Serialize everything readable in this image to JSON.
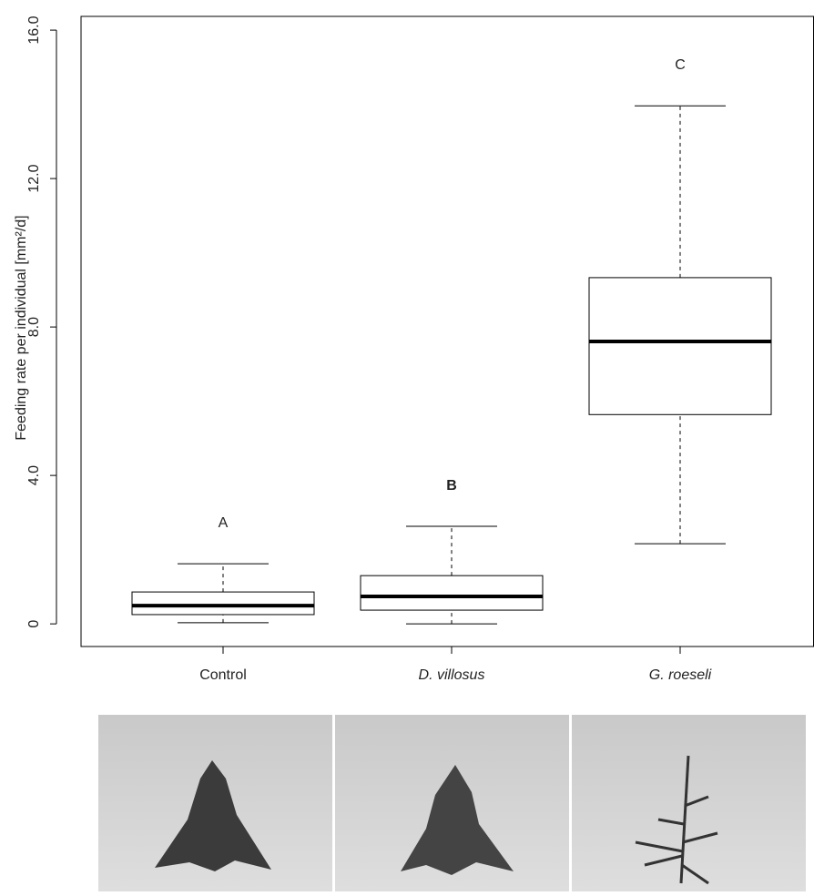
{
  "chart_data": {
    "type": "box",
    "y_label": "Feeding rate per individual [mm²/d]",
    "categories": [
      "Control",
      "D. villosus",
      "G. roeseli"
    ],
    "italic_categories": [
      false,
      true,
      true
    ],
    "boxes": [
      {
        "low": 0.03,
        "q1": 0.25,
        "median": 0.49,
        "q3": 0.86,
        "high": 1.62
      },
      {
        "low": 0.0,
        "q1": 0.37,
        "median": 0.74,
        "q3": 1.3,
        "high": 2.63
      },
      {
        "low": 2.16,
        "q1": 5.64,
        "median": 7.61,
        "q3": 9.33,
        "high": 13.96
      }
    ],
    "annotations": [
      "A",
      "B",
      "C"
    ],
    "bold_annotations": [
      false,
      true,
      false
    ],
    "ylim": [
      -0.61,
      16.37
    ],
    "yticks": [
      0,
      {
        "value": 4,
        "label": "4.0"
      },
      {
        "value": 8,
        "label": "8.0"
      },
      {
        "value": 12,
        "label": "12.0"
      },
      {
        "value": 16,
        "label": "16.0"
      }
    ],
    "color": "#000000"
  }
}
